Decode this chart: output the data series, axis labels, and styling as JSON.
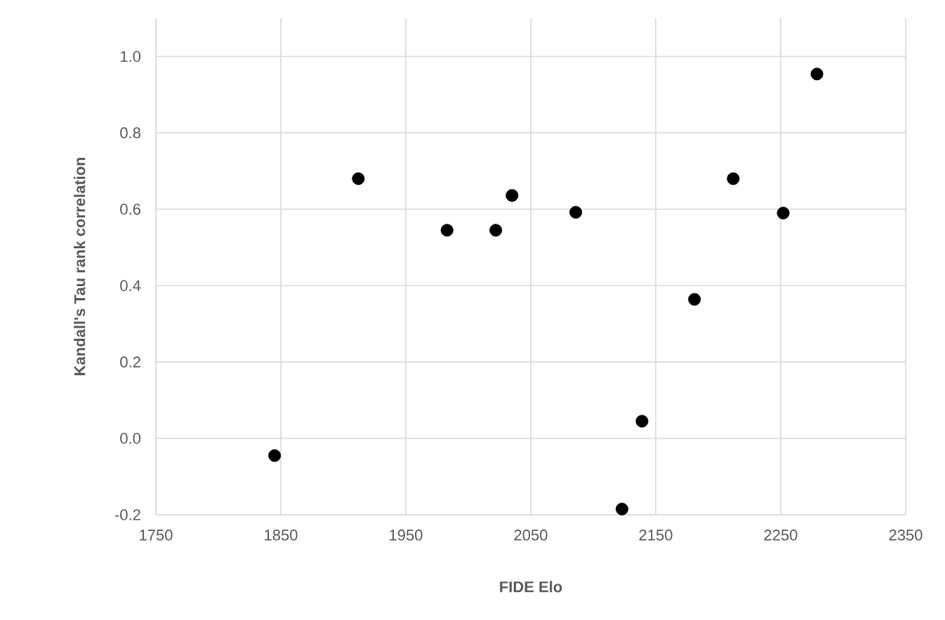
{
  "chart_data": {
    "type": "scatter",
    "xlabel": "FIDE Elo",
    "ylabel": "Kandall's Tau rank correlation",
    "x": [
      1845,
      1912,
      1983,
      2022,
      2035,
      2086,
      2123,
      2139,
      2181,
      2212,
      2252,
      2279
    ],
    "values": [
      -0.045,
      0.68,
      0.545,
      0.545,
      0.636,
      0.592,
      -0.185,
      0.045,
      0.364,
      0.68,
      0.59,
      0.954
    ],
    "color": "#000000",
    "marker": "circle",
    "grid": true,
    "xlim": [
      1750,
      2350
    ],
    "xticks": [
      1750,
      1850,
      1950,
      2050,
      2150,
      2250,
      2350
    ],
    "ylim": [
      -0.2,
      1.1
    ],
    "yticks": [
      {
        "value": -0.2,
        "label": "-0.2"
      },
      {
        "value": 0.0,
        "label": "0.0"
      },
      {
        "value": 0.2,
        "label": "0.2"
      },
      {
        "value": 0.4,
        "label": "0.4"
      },
      {
        "value": 0.6,
        "label": "0.6"
      },
      {
        "value": 0.8,
        "label": "0.8"
      },
      {
        "value": 1.0,
        "label": "1.0"
      }
    ]
  }
}
